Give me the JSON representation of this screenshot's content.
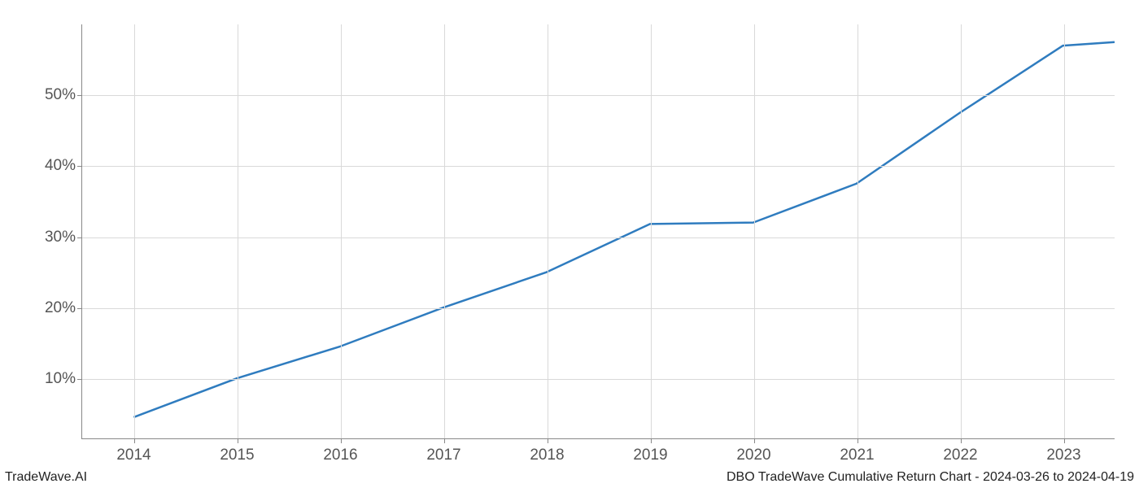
{
  "chart": {
    "type": "line",
    "background_color": "#ffffff",
    "grid_color": "#d9d9d9",
    "axis_color": "#888888",
    "line_color": "#2f7cbf",
    "line_width": 2.5,
    "tick_fontsize": 19,
    "tick_color": "#555555",
    "x": {
      "min": 2013.5,
      "max": 2023.5,
      "ticks": [
        2014,
        2015,
        2016,
        2017,
        2018,
        2019,
        2020,
        2021,
        2022,
        2023
      ],
      "tick_labels": [
        "2014",
        "2015",
        "2016",
        "2017",
        "2018",
        "2019",
        "2020",
        "2021",
        "2022",
        "2023"
      ]
    },
    "y": {
      "min": 1.5,
      "max": 60,
      "ticks": [
        10,
        20,
        30,
        40,
        50
      ],
      "tick_labels": [
        "10%",
        "20%",
        "30%",
        "40%",
        "50%"
      ]
    },
    "series": [
      {
        "x": [
          2014,
          2015,
          2016,
          2017,
          2018,
          2019,
          2020,
          2021,
          2022,
          2023,
          2023.5
        ],
        "y": [
          4.5,
          10,
          14.5,
          20,
          25,
          31.8,
          32,
          37.5,
          47.5,
          57,
          57.5
        ]
      }
    ]
  },
  "footer": {
    "left": "TradeWave.AI",
    "right": "DBO TradeWave Cumulative Return Chart - 2024-03-26 to 2024-04-19"
  }
}
